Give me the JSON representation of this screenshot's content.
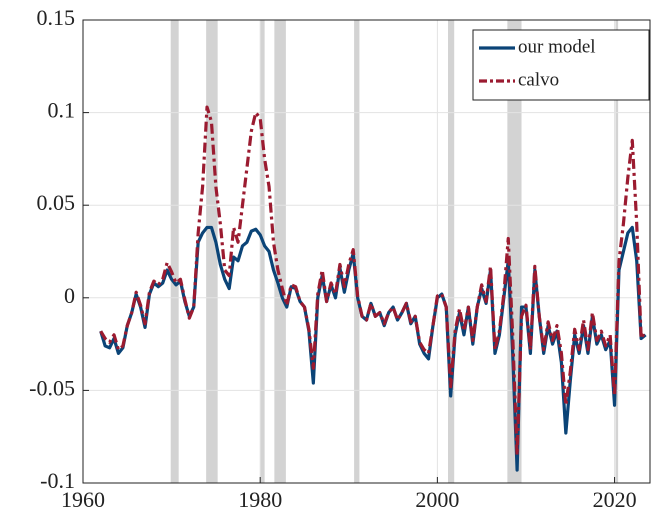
{
  "chart_data": {
    "type": "line",
    "xlim": [
      1960,
      2024
    ],
    "xticks": [
      1960,
      1980,
      2000,
      2020
    ],
    "ylim": [
      -0.1,
      0.15
    ],
    "yticks": [
      -0.1,
      -0.05,
      0,
      0.05,
      0.1,
      0.15
    ],
    "grid": true,
    "legend": "upper right",
    "shade_color": "#d3d3d3",
    "shaded_spans": [
      [
        1969.9,
        1970.8
      ],
      [
        1973.9,
        1975.2
      ],
      [
        1980.0,
        1980.5
      ],
      [
        1981.6,
        1982.9
      ],
      [
        1990.6,
        1991.2
      ],
      [
        2001.2,
        2001.9
      ],
      [
        2007.9,
        2009.5
      ],
      [
        2020.1,
        2020.4
      ]
    ],
    "x": [
      1962,
      1962.5,
      1963,
      1963.5,
      1964,
      1964.5,
      1965,
      1965.5,
      1966,
      1966.5,
      1967,
      1967.5,
      1968,
      1968.5,
      1969,
      1969.5,
      1970,
      1970.5,
      1971,
      1971.5,
      1972,
      1972.5,
      1973,
      1973.5,
      1974,
      1974.5,
      1975,
      1975.5,
      1976,
      1976.5,
      1977,
      1977.5,
      1978,
      1978.5,
      1979,
      1979.5,
      1980,
      1980.5,
      1981,
      1981.5,
      1982,
      1982.5,
      1983,
      1983.5,
      1984,
      1984.5,
      1985,
      1985.5,
      1986,
      1986.5,
      1987,
      1987.5,
      1988,
      1988.5,
      1989,
      1989.5,
      1990,
      1990.5,
      1991,
      1991.5,
      1992,
      1992.5,
      1993,
      1993.5,
      1994,
      1994.5,
      1995,
      1995.5,
      1996,
      1996.5,
      1997,
      1997.5,
      1998,
      1998.5,
      1999,
      1999.5,
      2000,
      2000.5,
      2001,
      2001.5,
      2002,
      2002.5,
      2003,
      2003.5,
      2004,
      2004.5,
      2005,
      2005.5,
      2006,
      2006.5,
      2007,
      2007.5,
      2008,
      2008.5,
      2009,
      2009.5,
      2010,
      2010.5,
      2011,
      2011.5,
      2012,
      2012.5,
      2013,
      2013.5,
      2014,
      2014.5,
      2015,
      2015.5,
      2016,
      2016.5,
      2017,
      2017.5,
      2018,
      2018.5,
      2019,
      2019.5,
      2020,
      2020.5,
      2021,
      2021.5,
      2022,
      2022.5,
      2023,
      2023.5
    ],
    "series": [
      {
        "name": "our model",
        "color": "#0b4477",
        "dash": "solid",
        "values": [
          -0.018,
          -0.026,
          -0.027,
          -0.022,
          -0.03,
          -0.027,
          -0.015,
          -0.008,
          0.002,
          -0.005,
          -0.016,
          0.002,
          0.008,
          0.006,
          0.008,
          0.015,
          0.01,
          0.007,
          0.009,
          -0.002,
          -0.01,
          -0.005,
          0.03,
          0.035,
          0.038,
          0.038,
          0.03,
          0.018,
          0.01,
          0.005,
          0.022,
          0.02,
          0.028,
          0.03,
          0.036,
          0.037,
          0.034,
          0.028,
          0.025,
          0.015,
          0.008,
          0.0,
          -0.005,
          0.006,
          0.005,
          -0.002,
          -0.005,
          -0.018,
          -0.046,
          0.0,
          0.012,
          -0.002,
          0.007,
          0.0,
          0.016,
          0.003,
          0.015,
          0.024,
          0.0,
          -0.01,
          -0.012,
          -0.003,
          -0.01,
          -0.008,
          -0.015,
          -0.008,
          -0.005,
          -0.012,
          -0.008,
          -0.003,
          -0.014,
          -0.01,
          -0.025,
          -0.03,
          -0.033,
          -0.015,
          0.0,
          0.002,
          -0.005,
          -0.053,
          -0.02,
          -0.008,
          -0.02,
          -0.005,
          -0.025,
          -0.005,
          0.005,
          -0.003,
          0.015,
          -0.03,
          -0.02,
          0.0,
          0.02,
          -0.03,
          -0.093,
          -0.005,
          -0.005,
          -0.03,
          0.015,
          -0.01,
          -0.03,
          -0.015,
          -0.025,
          -0.018,
          -0.035,
          -0.073,
          -0.045,
          -0.02,
          -0.03,
          -0.015,
          -0.03,
          -0.01,
          -0.025,
          -0.02,
          -0.028,
          -0.023,
          -0.058,
          0.015,
          0.025,
          0.035,
          0.038,
          0.02,
          -0.022,
          -0.02
        ]
      },
      {
        "name": "calvo",
        "color": "#9b1b30",
        "dash": "dashdot",
        "values": [
          -0.018,
          -0.022,
          -0.024,
          -0.02,
          -0.028,
          -0.026,
          -0.015,
          -0.008,
          0.003,
          -0.004,
          -0.014,
          0.003,
          0.009,
          0.007,
          0.01,
          0.019,
          0.014,
          0.008,
          0.01,
          -0.001,
          -0.011,
          -0.005,
          0.035,
          0.06,
          0.103,
          0.095,
          0.06,
          0.04,
          0.015,
          0.012,
          0.038,
          0.03,
          0.05,
          0.07,
          0.09,
          0.1,
          0.097,
          0.075,
          0.06,
          0.03,
          0.015,
          0.005,
          -0.004,
          0.007,
          0.006,
          -0.002,
          -0.005,
          -0.017,
          -0.038,
          0.002,
          0.015,
          -0.002,
          0.008,
          0.002,
          0.018,
          0.006,
          0.018,
          0.026,
          0.001,
          -0.01,
          -0.012,
          -0.003,
          -0.01,
          -0.008,
          -0.014,
          -0.008,
          -0.005,
          -0.012,
          -0.008,
          -0.003,
          -0.013,
          -0.01,
          -0.024,
          -0.028,
          -0.03,
          -0.015,
          0.001,
          0.002,
          -0.005,
          -0.048,
          -0.018,
          -0.006,
          -0.018,
          -0.005,
          -0.023,
          -0.005,
          0.007,
          -0.002,
          0.017,
          -0.028,
          -0.018,
          0.002,
          0.032,
          -0.02,
          -0.085,
          -0.01,
          -0.004,
          -0.028,
          0.017,
          -0.01,
          -0.028,
          -0.013,
          -0.023,
          -0.015,
          -0.03,
          -0.058,
          -0.04,
          -0.017,
          -0.028,
          -0.012,
          -0.028,
          -0.008,
          -0.023,
          -0.018,
          -0.026,
          -0.02,
          -0.053,
          0.02,
          0.04,
          0.065,
          0.085,
          0.04,
          -0.022,
          -0.018
        ]
      }
    ]
  }
}
